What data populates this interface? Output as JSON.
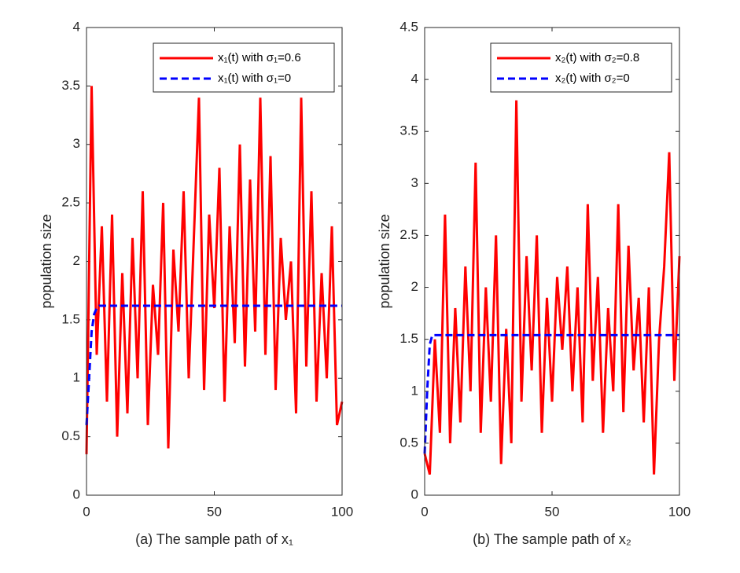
{
  "chart_data": [
    {
      "type": "line",
      "xlabel": "(a) The sample path of x₁",
      "ylabel": "population size",
      "xlim": [
        0,
        100
      ],
      "ylim": [
        0,
        4
      ],
      "xticks": [
        0,
        50,
        100
      ],
      "yticks": [
        0,
        0.5,
        1,
        1.5,
        2,
        2.5,
        3,
        3.5,
        4
      ],
      "legend": "upper right",
      "series": [
        {
          "name": "x₁(t) with σ₁=0.6",
          "color": "#ff0000",
          "linestyle": "solid",
          "x": [
            0,
            2,
            4,
            6,
            8,
            10,
            12,
            14,
            16,
            18,
            20,
            22,
            24,
            26,
            28,
            30,
            32,
            34,
            36,
            38,
            40,
            42,
            44,
            46,
            48,
            50,
            52,
            54,
            56,
            58,
            60,
            62,
            64,
            66,
            68,
            70,
            72,
            74,
            76,
            78,
            80,
            82,
            84,
            86,
            88,
            90,
            92,
            94,
            96,
            98,
            100
          ],
          "values": [
            0.35,
            3.5,
            1.2,
            2.3,
            0.8,
            2.4,
            0.5,
            1.9,
            0.7,
            2.2,
            1.0,
            2.6,
            0.6,
            1.8,
            1.2,
            2.5,
            0.4,
            2.1,
            1.4,
            2.6,
            1.0,
            2.2,
            3.4,
            0.9,
            2.4,
            1.6,
            2.8,
            0.8,
            2.3,
            1.3,
            3.0,
            1.1,
            2.7,
            1.4,
            3.4,
            1.2,
            2.9,
            0.9,
            2.2,
            1.5,
            2.0,
            0.7,
            3.4,
            1.1,
            2.6,
            0.8,
            1.9,
            1.0,
            2.3,
            0.6,
            0.8
          ]
        },
        {
          "name": "x₁(t) with σ₁=0",
          "color": "#0000ff",
          "linestyle": "dashed",
          "x": [
            0,
            1,
            2,
            3,
            4,
            5,
            100
          ],
          "values": [
            0.6,
            1.0,
            1.4,
            1.55,
            1.6,
            1.62,
            1.62
          ]
        }
      ]
    },
    {
      "type": "line",
      "xlabel": "(b) The sample path of x₂",
      "ylabel": "population size",
      "xlim": [
        0,
        100
      ],
      "ylim": [
        0,
        4.5
      ],
      "xticks": [
        0,
        50,
        100
      ],
      "yticks": [
        0,
        0.5,
        1,
        1.5,
        2,
        2.5,
        3,
        3.5,
        4,
        4.5
      ],
      "legend": "upper right",
      "series": [
        {
          "name": "x₂(t) with σ₂=0.8",
          "color": "#ff0000",
          "linestyle": "solid",
          "x": [
            0,
            2,
            4,
            6,
            8,
            10,
            12,
            14,
            16,
            18,
            20,
            22,
            24,
            26,
            28,
            30,
            32,
            34,
            36,
            38,
            40,
            42,
            44,
            46,
            48,
            50,
            52,
            54,
            56,
            58,
            60,
            62,
            64,
            66,
            68,
            70,
            72,
            74,
            76,
            78,
            80,
            82,
            84,
            86,
            88,
            90,
            92,
            94,
            96,
            98,
            100
          ],
          "values": [
            0.4,
            0.2,
            1.5,
            0.6,
            2.7,
            0.5,
            1.8,
            0.7,
            2.2,
            1.0,
            3.2,
            0.6,
            2.0,
            0.9,
            2.5,
            0.3,
            1.6,
            0.5,
            3.8,
            0.9,
            2.3,
            1.2,
            2.5,
            0.6,
            1.9,
            0.9,
            2.1,
            1.4,
            2.2,
            1.0,
            2.0,
            0.7,
            2.8,
            1.1,
            2.1,
            0.6,
            1.8,
            1.0,
            2.8,
            0.8,
            2.4,
            1.2,
            1.9,
            0.7,
            2.0,
            0.2,
            1.5,
            2.2,
            3.3,
            1.1,
            2.3
          ]
        },
        {
          "name": "x₂(t) with σ₂=0",
          "color": "#0000ff",
          "linestyle": "dashed",
          "x": [
            0,
            1,
            2,
            3,
            100
          ],
          "values": [
            0.4,
            1.0,
            1.45,
            1.54,
            1.54
          ]
        }
      ]
    }
  ]
}
